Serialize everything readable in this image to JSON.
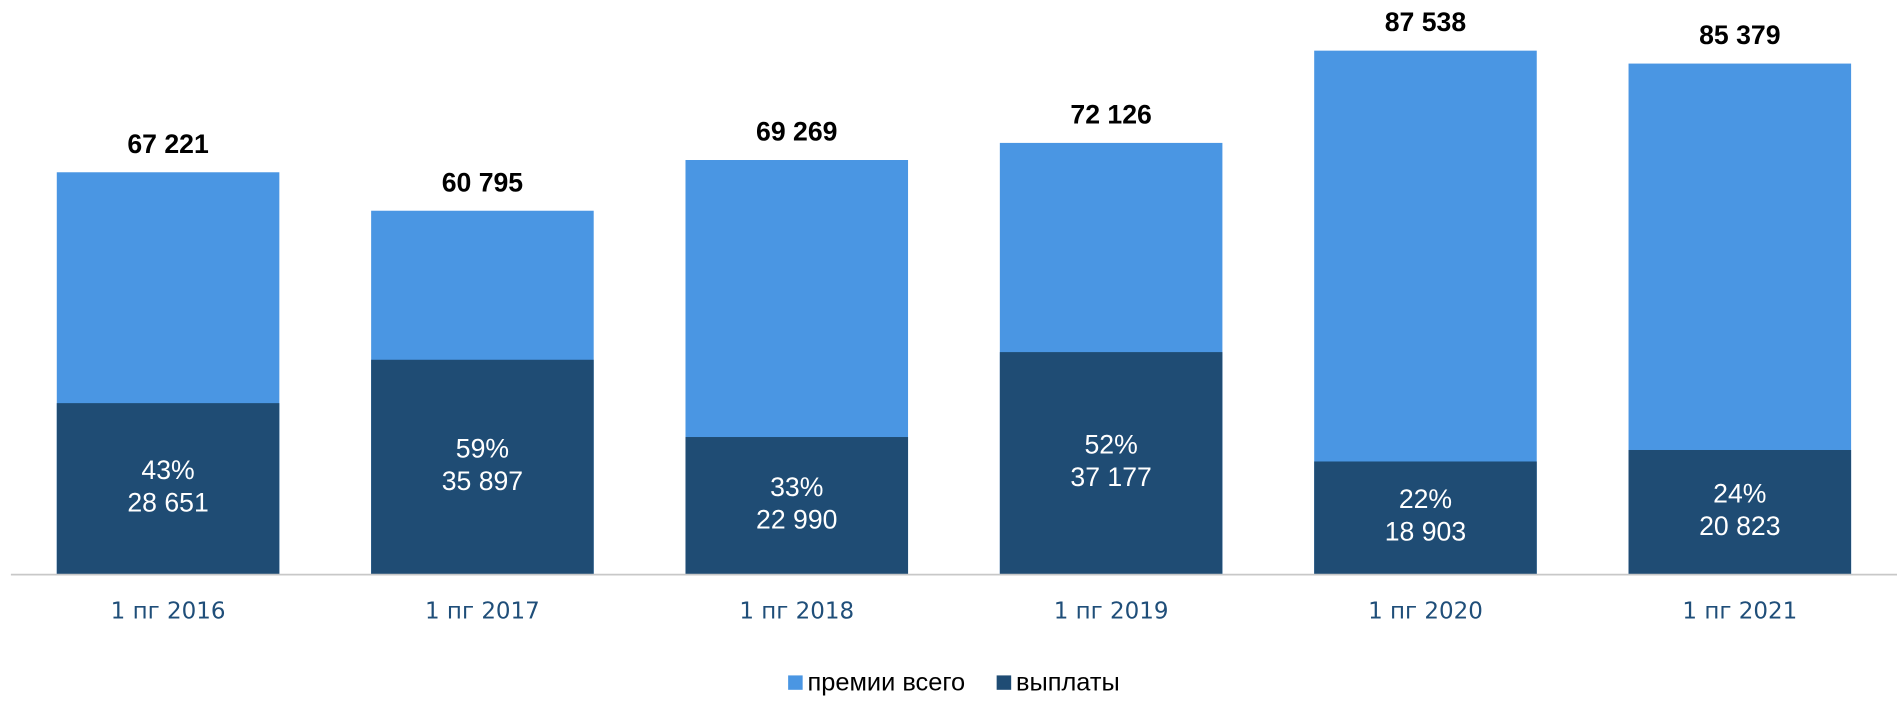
{
  "chart_data": {
    "type": "overlap-bar",
    "categories": [
      "1 пг 2016",
      "1 пг 2017",
      "1 пг 2018",
      "1 пг 2019",
      "1 пг 2020",
      "1 пг 2021"
    ],
    "series": [
      {
        "name": "премии всего",
        "color": "#4a96e3",
        "values": [
          67221,
          60795,
          69269,
          72126,
          87538,
          85379
        ],
        "value_labels": [
          "67 221",
          "60 795",
          "69 269",
          "72 126",
          "87 538",
          "85 379"
        ]
      },
      {
        "name": "выплаты",
        "color": "#1f4c74",
        "values": [
          28651,
          35897,
          22990,
          37177,
          18903,
          20823
        ],
        "value_labels": [
          "28 651",
          "35 897",
          "22 990",
          "37 177",
          "18 903",
          "20 823"
        ],
        "shares": [
          "43%",
          "59%",
          "33%",
          "52%",
          "22%",
          "24%"
        ]
      }
    ],
    "ylim": [
      0,
      96000
    ],
    "legend": "bottom"
  }
}
